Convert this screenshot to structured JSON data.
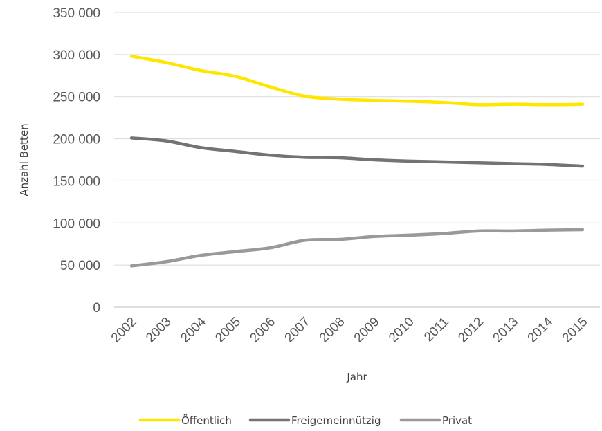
{
  "chart_data": {
    "type": "line",
    "title": "",
    "xlabel": "Jahr",
    "ylabel": "Anzahl Betten",
    "x": [
      "2002",
      "2003",
      "2004",
      "2005",
      "2006",
      "2007",
      "2008",
      "2009",
      "2010",
      "2011",
      "2012",
      "2013",
      "2014",
      "2015"
    ],
    "ylim": [
      0,
      350000
    ],
    "yticks": [
      0,
      50000,
      100000,
      150000,
      200000,
      250000,
      300000,
      350000
    ],
    "ytick_labels": [
      "0",
      "50 000",
      "100 000",
      "150 000",
      "200 000",
      "250 000",
      "300 000",
      "350 000"
    ],
    "grid": true,
    "legend_position": "bottom",
    "series": [
      {
        "name": "Öffentlich",
        "color": "#ffe600",
        "values": [
          298000,
          290500,
          281000,
          274000,
          261500,
          250500,
          247000,
          245500,
          244500,
          243000,
          240500,
          241000,
          240500,
          241000
        ]
      },
      {
        "name": "Freigemeinnützig",
        "color": "#737373",
        "values": [
          201000,
          197500,
          189500,
          185000,
          180500,
          178000,
          177500,
          175000,
          173500,
          172500,
          171500,
          170500,
          169500,
          167500
        ]
      },
      {
        "name": "Privat",
        "color": "#999999",
        "values": [
          49000,
          54000,
          61500,
          66000,
          70500,
          79500,
          80500,
          84000,
          85500,
          87500,
          90500,
          90500,
          91500,
          92000
        ]
      }
    ]
  }
}
